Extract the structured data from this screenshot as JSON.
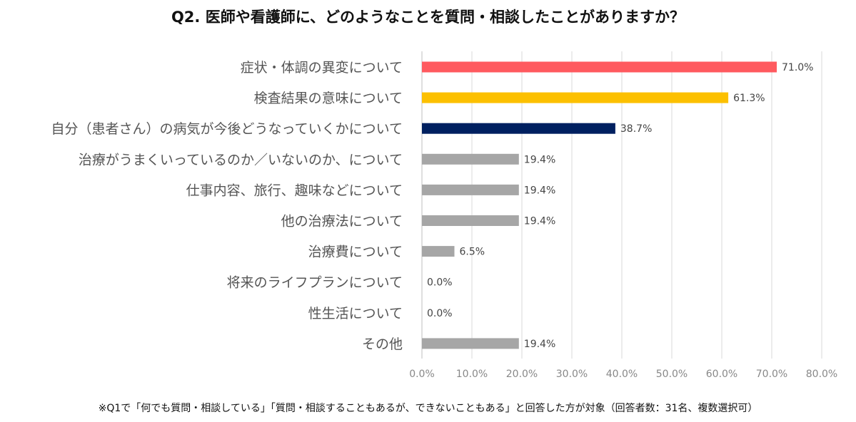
{
  "chart_data": {
    "type": "bar",
    "orientation": "horizontal",
    "title": "Q2. 医師や看護師に、どのようなことを質問・相談したことがありますか？",
    "categories": [
      "症状・体調の異変について",
      "検査結果の意味について",
      "自分（患者さん）の病気が今後どうなっていくかについて",
      "治療がうまくいっているのか／いないのか、について",
      "仕事内容、旅行、趣味などについて",
      "他の治療法について",
      "治療費について",
      "将来のライフプランについて",
      "性生活について",
      "その他"
    ],
    "values": [
      71.0,
      61.3,
      38.7,
      19.4,
      19.4,
      19.4,
      6.5,
      0.0,
      0.0,
      19.4
    ],
    "value_labels": [
      "71.0%",
      "61.3%",
      "38.7%",
      "19.4%",
      "19.4%",
      "19.4%",
      "6.5%",
      "0.0%",
      "0.0%",
      "19.4%"
    ],
    "bar_colors": [
      "#ff5a5f",
      "#fcc000",
      "#002060",
      "#a6a6a6",
      "#a6a6a6",
      "#a6a6a6",
      "#a6a6a6",
      "#a6a6a6",
      "#a6a6a6",
      "#a6a6a6"
    ],
    "xlim": [
      0,
      80
    ],
    "xticks": [
      "0.0%",
      "10.0%",
      "20.0%",
      "30.0%",
      "40.0%",
      "50.0%",
      "60.0%",
      "70.0%",
      "80.0%"
    ],
    "grid": true
  },
  "footnote": "※Q1で「何でも質問・相談している」「質問・相談することもあるが、できないこともある」と回答した方が対象（回答者数：31名、複数選択可）"
}
